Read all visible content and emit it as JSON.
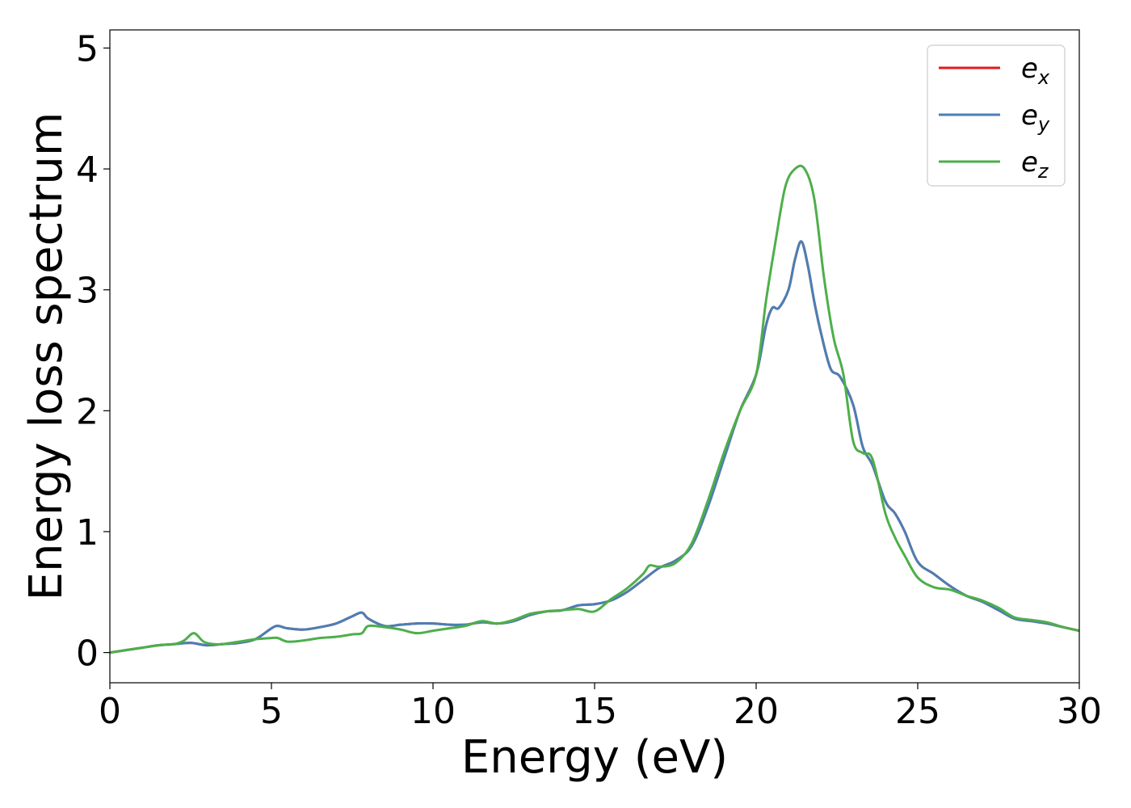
{
  "chart_data": {
    "type": "line",
    "title": "",
    "xlabel": "Energy (eV)",
    "ylabel": "Energy loss spectrum",
    "xlim": [
      0,
      30
    ],
    "ylim": [
      -0.25,
      5.15
    ],
    "xticks": [
      "0",
      "5",
      "10",
      "15",
      "20",
      "25",
      "30"
    ],
    "yticks": [
      "0",
      "1",
      "2",
      "3",
      "4",
      "5"
    ],
    "grid": false,
    "legend_position": "top-right",
    "series": [
      {
        "name": "e",
        "subscript": "x",
        "color": "#e41a1c",
        "x": [
          0,
          0.5,
          1,
          1.5,
          2,
          2.5,
          3,
          3.5,
          4,
          4.5,
          5,
          5.2,
          5.5,
          6,
          6.5,
          7,
          7.5,
          7.8,
          8,
          8.5,
          9,
          9.5,
          10,
          10.5,
          11,
          11.5,
          12,
          12.5,
          13,
          13.5,
          14,
          14.5,
          15,
          15.5,
          16,
          16.5,
          17,
          17.5,
          18,
          18.5,
          19,
          19.5,
          20,
          20.3,
          20.5,
          20.7,
          21,
          21.2,
          21.4,
          21.6,
          21.8,
          22,
          22.3,
          22.6,
          23,
          23.3,
          23.6,
          24,
          24.3,
          24.6,
          25,
          25.5,
          26,
          26.5,
          27,
          27.5,
          28,
          28.5,
          29,
          29.5,
          30
        ],
        "y": [
          0,
          0.02,
          0.04,
          0.06,
          0.07,
          0.08,
          0.06,
          0.07,
          0.08,
          0.11,
          0.2,
          0.22,
          0.2,
          0.19,
          0.21,
          0.24,
          0.3,
          0.33,
          0.28,
          0.22,
          0.23,
          0.24,
          0.24,
          0.23,
          0.23,
          0.25,
          0.24,
          0.26,
          0.31,
          0.34,
          0.35,
          0.39,
          0.4,
          0.43,
          0.5,
          0.6,
          0.7,
          0.76,
          0.88,
          1.2,
          1.6,
          2.0,
          2.3,
          2.7,
          2.85,
          2.85,
          3.0,
          3.25,
          3.4,
          3.2,
          2.9,
          2.65,
          2.35,
          2.28,
          2.05,
          1.7,
          1.55,
          1.25,
          1.15,
          1.0,
          0.75,
          0.65,
          0.55,
          0.47,
          0.42,
          0.35,
          0.28,
          0.26,
          0.24,
          0.21,
          0.18
        ]
      },
      {
        "name": "e",
        "subscript": "y",
        "color": "#4a7fb5",
        "x": [
          0,
          0.5,
          1,
          1.5,
          2,
          2.5,
          3,
          3.5,
          4,
          4.5,
          5,
          5.2,
          5.5,
          6,
          6.5,
          7,
          7.5,
          7.8,
          8,
          8.5,
          9,
          9.5,
          10,
          10.5,
          11,
          11.5,
          12,
          12.5,
          13,
          13.5,
          14,
          14.5,
          15,
          15.5,
          16,
          16.5,
          17,
          17.5,
          18,
          18.5,
          19,
          19.5,
          20,
          20.3,
          20.5,
          20.7,
          21,
          21.2,
          21.4,
          21.6,
          21.8,
          22,
          22.3,
          22.6,
          23,
          23.3,
          23.6,
          24,
          24.3,
          24.6,
          25,
          25.5,
          26,
          26.5,
          27,
          27.5,
          28,
          28.5,
          29,
          29.5,
          30
        ],
        "y": [
          0,
          0.02,
          0.04,
          0.06,
          0.07,
          0.08,
          0.06,
          0.07,
          0.08,
          0.11,
          0.2,
          0.22,
          0.2,
          0.19,
          0.21,
          0.24,
          0.3,
          0.33,
          0.28,
          0.22,
          0.23,
          0.24,
          0.24,
          0.23,
          0.23,
          0.25,
          0.24,
          0.26,
          0.31,
          0.34,
          0.35,
          0.39,
          0.4,
          0.43,
          0.5,
          0.6,
          0.7,
          0.76,
          0.88,
          1.2,
          1.6,
          2.0,
          2.3,
          2.7,
          2.85,
          2.85,
          3.0,
          3.25,
          3.4,
          3.2,
          2.9,
          2.65,
          2.35,
          2.28,
          2.05,
          1.7,
          1.55,
          1.25,
          1.15,
          1.0,
          0.75,
          0.65,
          0.55,
          0.47,
          0.42,
          0.35,
          0.28,
          0.26,
          0.24,
          0.21,
          0.18
        ]
      },
      {
        "name": "e",
        "subscript": "z",
        "color": "#4daf4a",
        "x": [
          0,
          0.5,
          1,
          1.5,
          2,
          2.3,
          2.6,
          2.9,
          3.2,
          3.5,
          4,
          4.5,
          5,
          5.2,
          5.5,
          6,
          6.5,
          7,
          7.5,
          7.8,
          8,
          8.5,
          9,
          9.5,
          10,
          10.5,
          11,
          11.5,
          12,
          12.5,
          13,
          13.5,
          14,
          14.5,
          15,
          15.5,
          16,
          16.5,
          16.7,
          17,
          17.5,
          18,
          18.5,
          19,
          19.5,
          20,
          20.3,
          20.6,
          20.9,
          21.2,
          21.5,
          21.8,
          22.1,
          22.4,
          22.7,
          23,
          23.3,
          23.6,
          24,
          24.3,
          24.6,
          25,
          25.5,
          26,
          26.5,
          27,
          27.5,
          28,
          28.5,
          29,
          29.5,
          30
        ],
        "y": [
          0,
          0.02,
          0.04,
          0.06,
          0.07,
          0.1,
          0.16,
          0.09,
          0.07,
          0.07,
          0.09,
          0.11,
          0.12,
          0.12,
          0.09,
          0.1,
          0.12,
          0.13,
          0.15,
          0.16,
          0.22,
          0.21,
          0.19,
          0.16,
          0.18,
          0.2,
          0.22,
          0.26,
          0.24,
          0.27,
          0.32,
          0.34,
          0.35,
          0.36,
          0.34,
          0.44,
          0.53,
          0.65,
          0.72,
          0.71,
          0.74,
          0.9,
          1.25,
          1.65,
          2.0,
          2.3,
          2.9,
          3.4,
          3.85,
          4.0,
          4.0,
          3.75,
          3.1,
          2.6,
          2.3,
          1.75,
          1.65,
          1.6,
          1.15,
          0.95,
          0.8,
          0.62,
          0.54,
          0.52,
          0.47,
          0.43,
          0.37,
          0.29,
          0.27,
          0.25,
          0.21,
          0.18
        ]
      }
    ]
  }
}
